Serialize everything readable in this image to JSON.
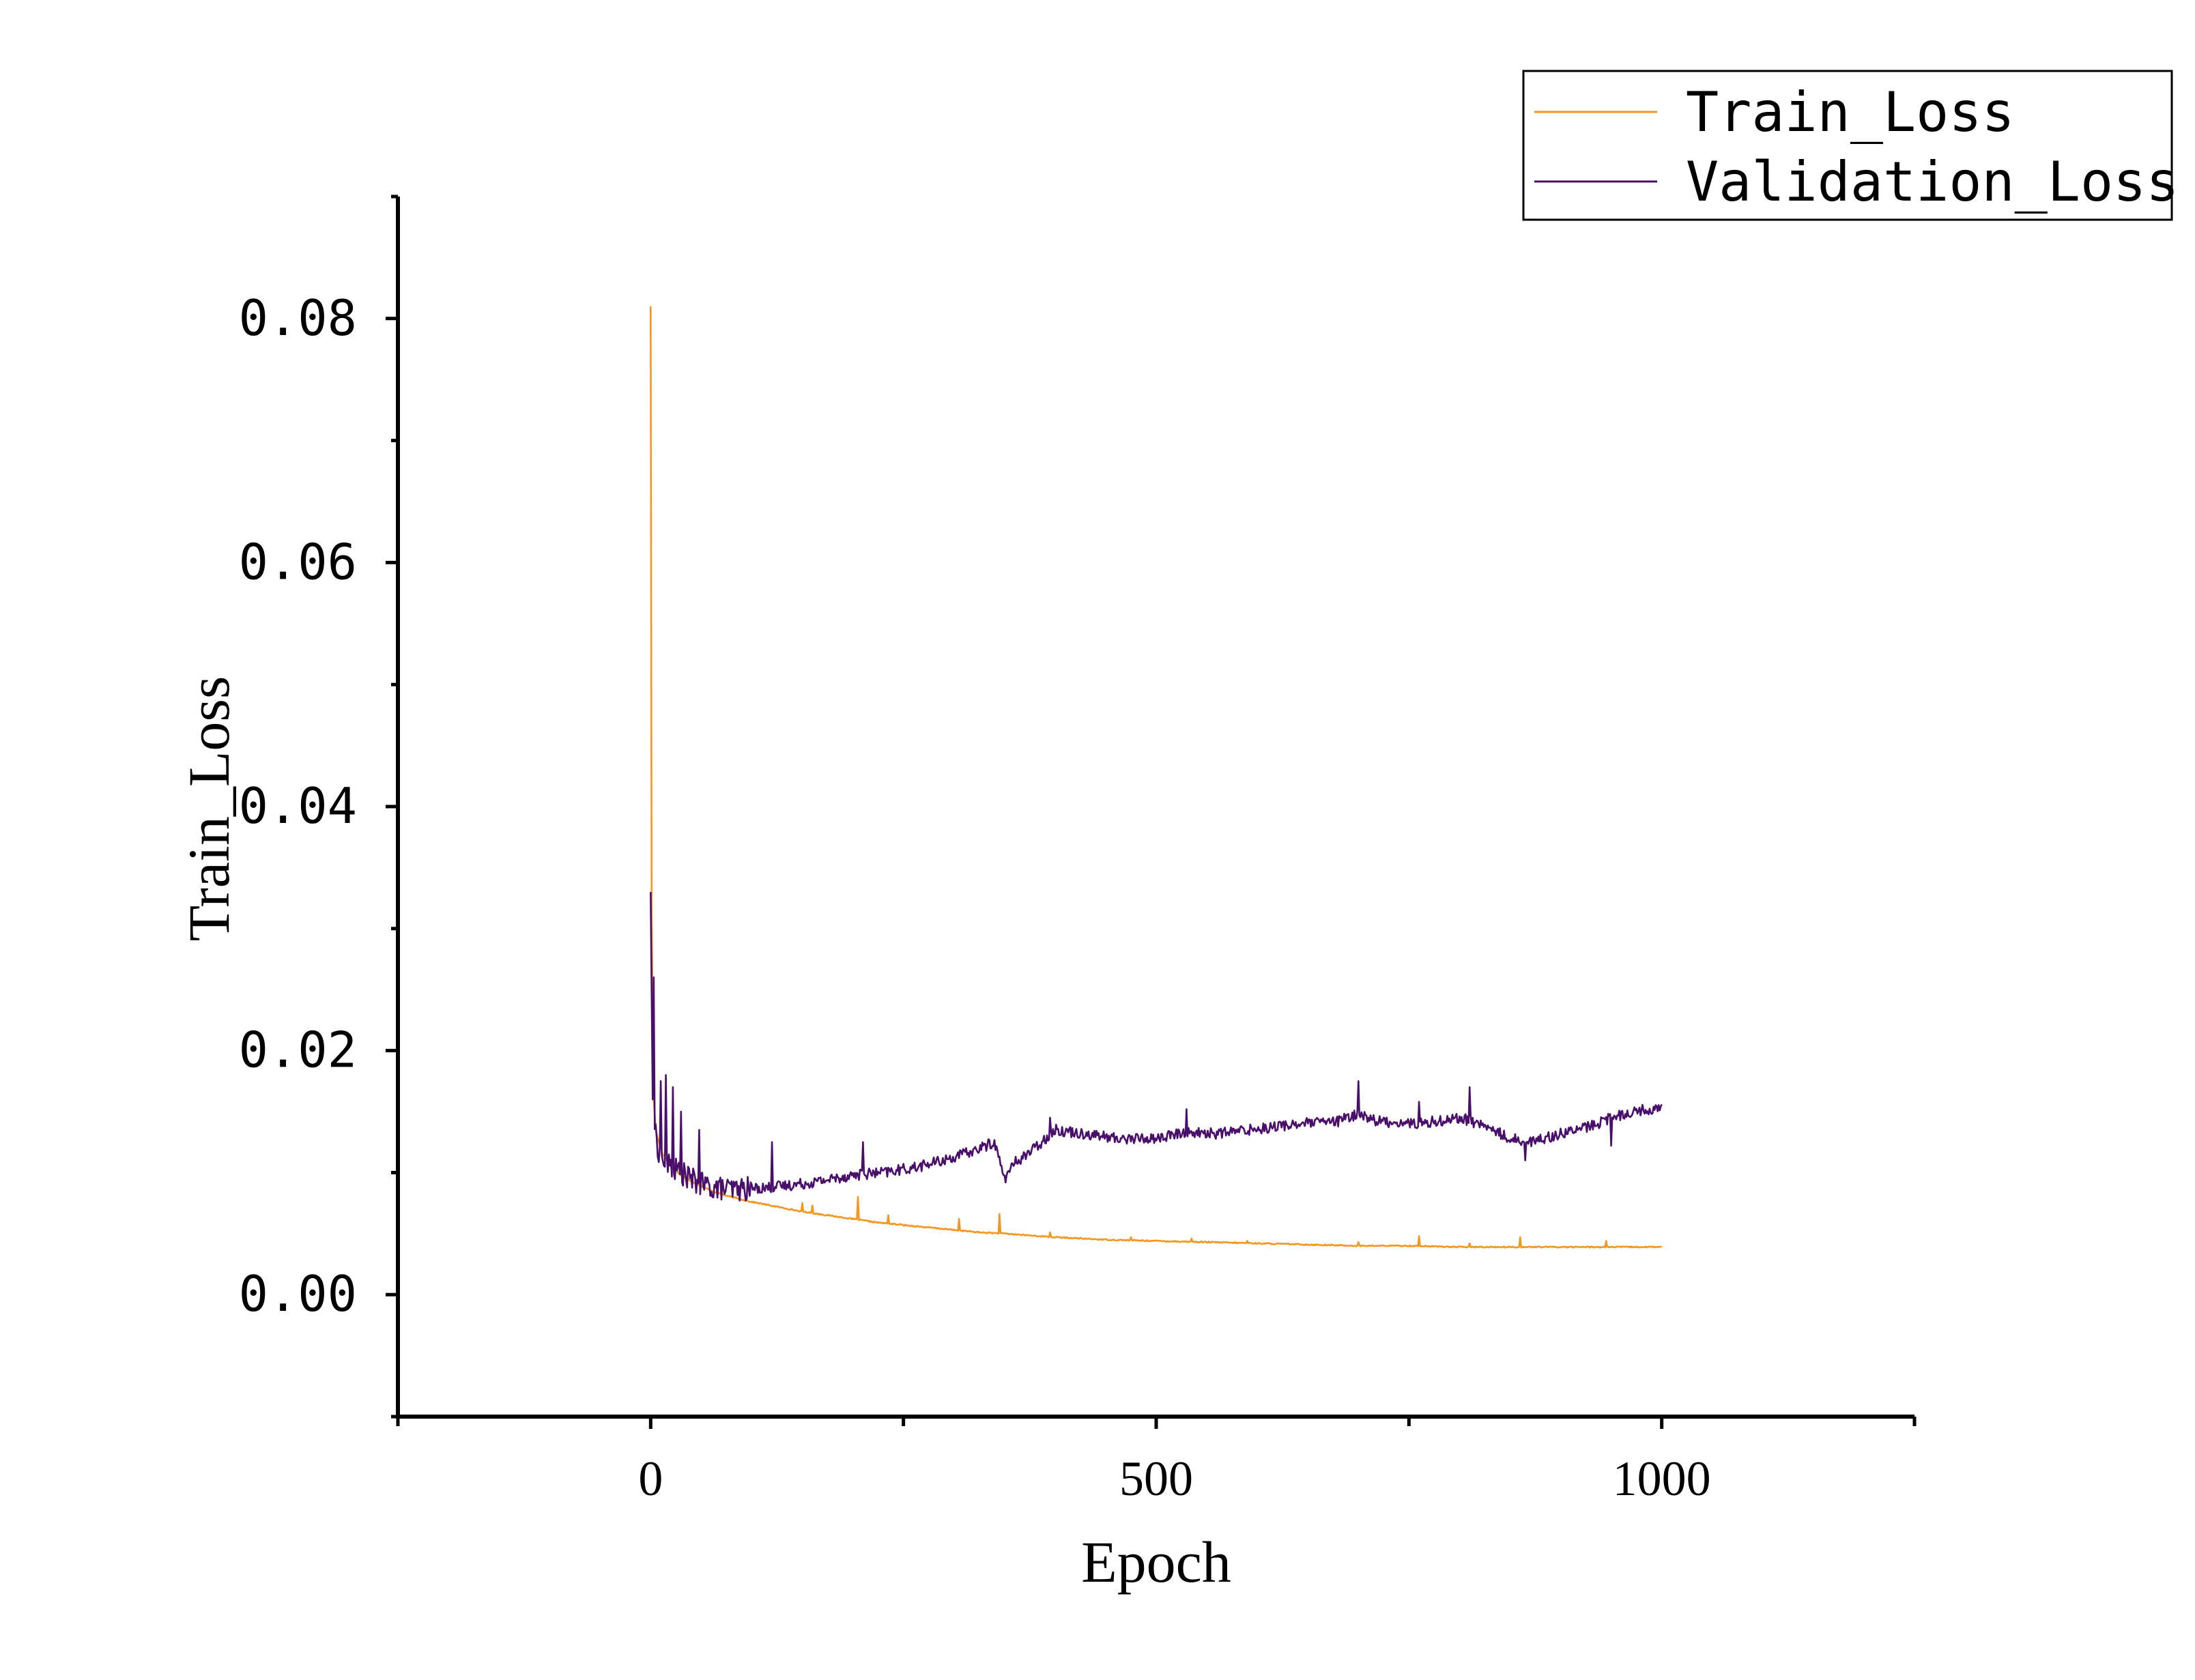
{
  "chart_data": {
    "type": "line",
    "xlabel": "Epoch",
    "ylabel": "Train_Loss",
    "xlim": [
      -250,
      1250
    ],
    "ylim": [
      -0.01,
      0.09
    ],
    "x_ticks": [
      0,
      500,
      1000
    ],
    "y_ticks": [
      0.0,
      0.02,
      0.04,
      0.06,
      0.08
    ],
    "x_tick_labels": [
      "0",
      "500",
      "1000"
    ],
    "y_tick_labels": [
      "0.00",
      "0.02",
      "0.04",
      "0.06",
      "0.08"
    ],
    "legend_position": "top-right",
    "grid": false,
    "series": [
      {
        "name": "Train_Loss",
        "color": "#f5961e",
        "points": [
          [
            0,
            0.081
          ],
          [
            1,
            0.032
          ],
          [
            2,
            0.021
          ],
          [
            3,
            0.016
          ],
          [
            5,
            0.0135
          ],
          [
            8,
            0.0125
          ],
          [
            12,
            0.0115
          ],
          [
            20,
            0.0105
          ],
          [
            30,
            0.0098
          ],
          [
            40,
            0.0093
          ],
          [
            50,
            0.0089
          ],
          [
            60,
            0.0085
          ],
          [
            75,
            0.0081
          ],
          [
            100,
            0.0076
          ],
          [
            125,
            0.0072
          ],
          [
            150,
            0.0068
          ],
          [
            175,
            0.0065
          ],
          [
            200,
            0.0062
          ],
          [
            225,
            0.0059
          ],
          [
            250,
            0.0057
          ],
          [
            275,
            0.0055
          ],
          [
            300,
            0.0053
          ],
          [
            325,
            0.0051
          ],
          [
            350,
            0.005
          ],
          [
            400,
            0.0047
          ],
          [
            450,
            0.0045
          ],
          [
            500,
            0.0044
          ],
          [
            550,
            0.0043
          ],
          [
            600,
            0.0042
          ],
          [
            650,
            0.0041
          ],
          [
            700,
            0.004
          ],
          [
            750,
            0.004
          ],
          [
            800,
            0.0039
          ],
          [
            850,
            0.0039
          ],
          [
            900,
            0.0039
          ],
          [
            950,
            0.0039
          ],
          [
            1000,
            0.0039
          ]
        ],
        "spikes": [
          [
            150,
            0.0075
          ],
          [
            160,
            0.0073
          ],
          [
            205,
            0.008
          ],
          [
            235,
            0.0065
          ],
          [
            305,
            0.0062
          ],
          [
            345,
            0.0066
          ],
          [
            395,
            0.0051
          ],
          [
            475,
            0.0047
          ],
          [
            535,
            0.0046
          ],
          [
            590,
            0.0044
          ],
          [
            700,
            0.0043
          ],
          [
            760,
            0.0048
          ],
          [
            810,
            0.0042
          ],
          [
            860,
            0.0047
          ],
          [
            945,
            0.0044
          ]
        ]
      },
      {
        "name": "Validation_Loss",
        "color": "#4a0f6b",
        "points": [
          [
            0,
            0.033
          ],
          [
            2,
            0.016
          ],
          [
            5,
            0.013
          ],
          [
            10,
            0.011
          ],
          [
            20,
            0.0105
          ],
          [
            30,
            0.01
          ],
          [
            45,
            0.0092
          ],
          [
            60,
            0.0088
          ],
          [
            80,
            0.0086
          ],
          [
            100,
            0.0087
          ],
          [
            120,
            0.0088
          ],
          [
            140,
            0.009
          ],
          [
            160,
            0.0092
          ],
          [
            180,
            0.0095
          ],
          [
            200,
            0.0098
          ],
          [
            230,
            0.01
          ],
          [
            260,
            0.0104
          ],
          [
            290,
            0.011
          ],
          [
            320,
            0.0118
          ],
          [
            340,
            0.0125
          ],
          [
            350,
            0.0095
          ],
          [
            360,
            0.0108
          ],
          [
            380,
            0.012
          ],
          [
            400,
            0.0135
          ],
          [
            430,
            0.0132
          ],
          [
            460,
            0.0128
          ],
          [
            500,
            0.0128
          ],
          [
            530,
            0.0133
          ],
          [
            560,
            0.0132
          ],
          [
            600,
            0.0136
          ],
          [
            640,
            0.014
          ],
          [
            680,
            0.0142
          ],
          [
            700,
            0.0148
          ],
          [
            720,
            0.0142
          ],
          [
            760,
            0.014
          ],
          [
            800,
            0.0145
          ],
          [
            820,
            0.014
          ],
          [
            850,
            0.0128
          ],
          [
            870,
            0.0125
          ],
          [
            900,
            0.0132
          ],
          [
            930,
            0.0138
          ],
          [
            950,
            0.0145
          ],
          [
            970,
            0.015
          ],
          [
            1000,
            0.0153
          ]
        ],
        "spikes": [
          [
            3,
            0.026
          ],
          [
            10,
            0.0175
          ],
          [
            15,
            0.018
          ],
          [
            22,
            0.017
          ],
          [
            30,
            0.015
          ],
          [
            48,
            0.0135
          ],
          [
            120,
            0.0125
          ],
          [
            210,
            0.0125
          ],
          [
            395,
            0.0145
          ],
          [
            530,
            0.0152
          ],
          [
            700,
            0.0175
          ],
          [
            760,
            0.0158
          ],
          [
            810,
            0.017
          ],
          [
            865,
            0.011
          ],
          [
            950,
            0.0122
          ]
        ]
      }
    ]
  }
}
